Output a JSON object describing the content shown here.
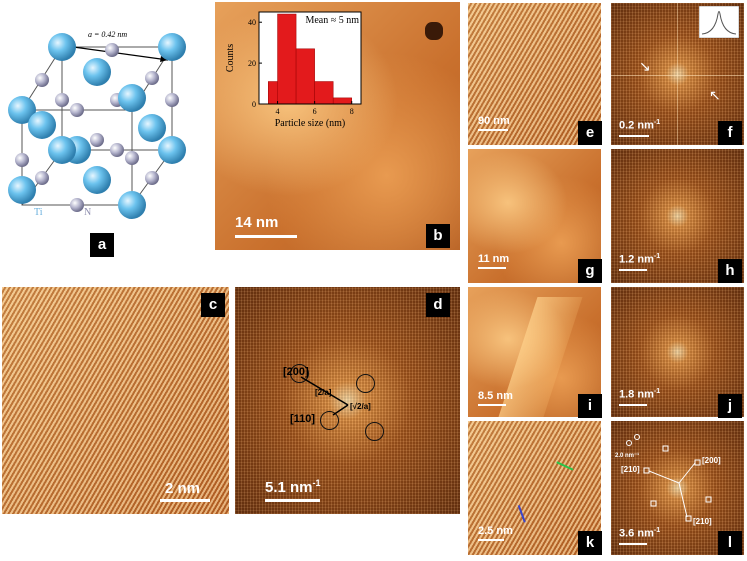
{
  "panel_a": {
    "letter": "a",
    "lattice_constant": "a = 0.42 nm",
    "atom_labels": [
      "Ti",
      "N"
    ]
  },
  "panel_b": {
    "letter": "b",
    "scale": "14 nm",
    "inset_chart": {
      "chart_data": {
        "type": "bar",
        "ylabel": "Counts",
        "xlabel": "Particle size (nm)",
        "annotation": "Mean ≈ 5 nm",
        "x_ticks": [
          "4",
          "6",
          "8"
        ],
        "y_ticks": [
          "0",
          "20",
          "40"
        ],
        "xlim": [
          3,
          8.5
        ],
        "ylim": [
          0,
          45
        ],
        "bins": [
          3.5,
          4.0,
          5.0,
          6.0,
          7.0
        ],
        "bin_width": 1,
        "values": [
          11,
          44,
          27,
          11,
          3
        ],
        "bar_color": "#e31a1c"
      }
    }
  },
  "panel_c": {
    "letter": "c",
    "scale": "2 nm"
  },
  "panel_d": {
    "letter": "d",
    "scale": "5.1 nm",
    "scale_sup": "-1",
    "labels": {
      "p200": "[200]",
      "p110": "[110]",
      "v1": "[2/a]",
      "v2": "[√2/a]"
    }
  },
  "panel_e": {
    "letter": "e",
    "scale": "90 nm"
  },
  "panel_f": {
    "letter": "f",
    "scale": "0.2 nm",
    "scale_sup": "-1"
  },
  "panel_g": {
    "letter": "g",
    "scale": "11 nm"
  },
  "panel_h": {
    "letter": "h",
    "scale": "1.2 nm",
    "scale_sup": "-1"
  },
  "panel_i": {
    "letter": "i",
    "scale": "8.5 nm"
  },
  "panel_j": {
    "letter": "j",
    "scale": "1.8 nm",
    "scale_sup": "-1"
  },
  "panel_k": {
    "letter": "k",
    "scale": "2.5 nm"
  },
  "panel_l": {
    "letter": "l",
    "scale": "3.6 nm",
    "scale_sup": "-1",
    "small_scale": "2.0 nm⁻¹",
    "labels": {
      "p210a": "[210]",
      "p200": "[200]",
      "p210b": "[210]"
    }
  },
  "colors": {
    "atom_ti": "#5bb8e6",
    "atom_n": "#a9a9c4",
    "label_bg": "#000000",
    "hist_bar": "#e31a1c"
  }
}
